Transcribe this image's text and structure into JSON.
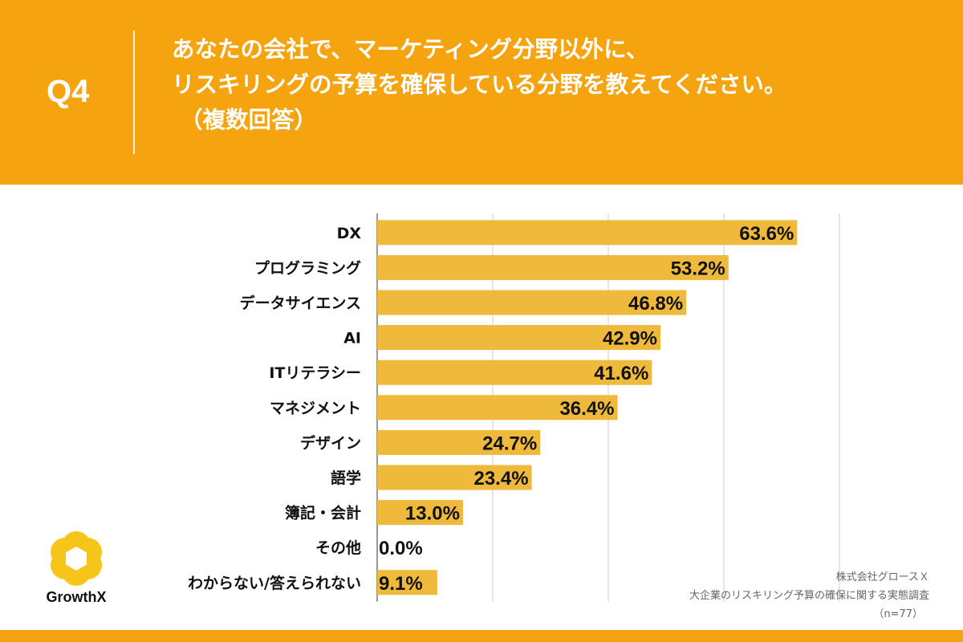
{
  "header": {
    "q_label": "Q4",
    "title_line1": "あなたの会社で、マーケティング分野以外に、",
    "title_line2": "リスキリングの予算を確保している分野を教えてください。",
    "title_line3": "（複数回答）"
  },
  "logo": {
    "name": "GrowthX",
    "icon": "hexagon-flower-icon"
  },
  "footer": {
    "company": "株式会社グロースＸ",
    "survey": "大企業のリスキリング予算の確保に関する実態調査",
    "sample": "（n=77）"
  },
  "colors": {
    "background": "#F5A30E",
    "bar": "#EFB93C",
    "panel": "#FFFFFF"
  },
  "chart_data": {
    "type": "bar",
    "orientation": "horizontal",
    "categories": [
      "DX",
      "プログラミング",
      "データサイエンス",
      "AI",
      "ITリテラシー",
      "マネジメント",
      "デザイン",
      "語学",
      "簿記・会計",
      "その他",
      "わからない/答えられない"
    ],
    "values": [
      63.6,
      53.2,
      46.8,
      42.9,
      41.6,
      36.4,
      24.7,
      23.4,
      13.0,
      0.0,
      9.1
    ],
    "value_labels": [
      "63.6%",
      "53.2%",
      "46.8%",
      "42.9%",
      "41.6%",
      "36.4%",
      "24.7%",
      "23.4%",
      "13.0%",
      "0.0%",
      "9.1%"
    ],
    "xlim": [
      0,
      70
    ],
    "gridlines": [
      0,
      17.5,
      35,
      52.5,
      70
    ],
    "unit": "%",
    "grid": true
  }
}
